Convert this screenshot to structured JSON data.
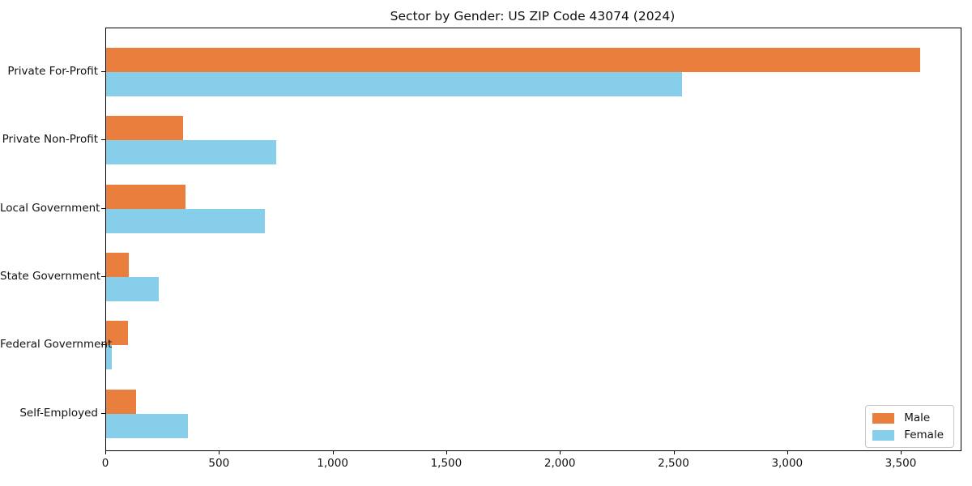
{
  "chart_data": {
    "type": "bar",
    "orientation": "horizontal",
    "title": "Sector by Gender: US ZIP Code 43074 (2024)",
    "categories": [
      "Private For-Profit",
      "Private Non-Profit",
      "Local Government",
      "State Government",
      "Federal Government",
      "Self-Employed"
    ],
    "series": [
      {
        "name": "Male",
        "color": "#e97e3d",
        "values": [
          3580,
          340,
          350,
          100,
          95,
          130
        ]
      },
      {
        "name": "Female",
        "color": "#87ceeb",
        "values": [
          2535,
          750,
          700,
          230,
          25,
          360
        ]
      }
    ],
    "xlabel": "",
    "ylabel": "",
    "xlim": [
      0,
      3760
    ],
    "xticks": {
      "values": [
        0,
        500,
        1000,
        1500,
        2000,
        2500,
        3000,
        3500
      ],
      "labels": [
        "0",
        "500",
        "1,000",
        "1,500",
        "2,000",
        "2,500",
        "3,000",
        "3,500"
      ]
    },
    "grid": false,
    "legend_position": "lower right",
    "colors": {
      "male": "#e97e3d",
      "female": "#87ceeb",
      "axis": "#000000",
      "background": "#ffffff",
      "legend_border": "#c8c8c8"
    }
  }
}
